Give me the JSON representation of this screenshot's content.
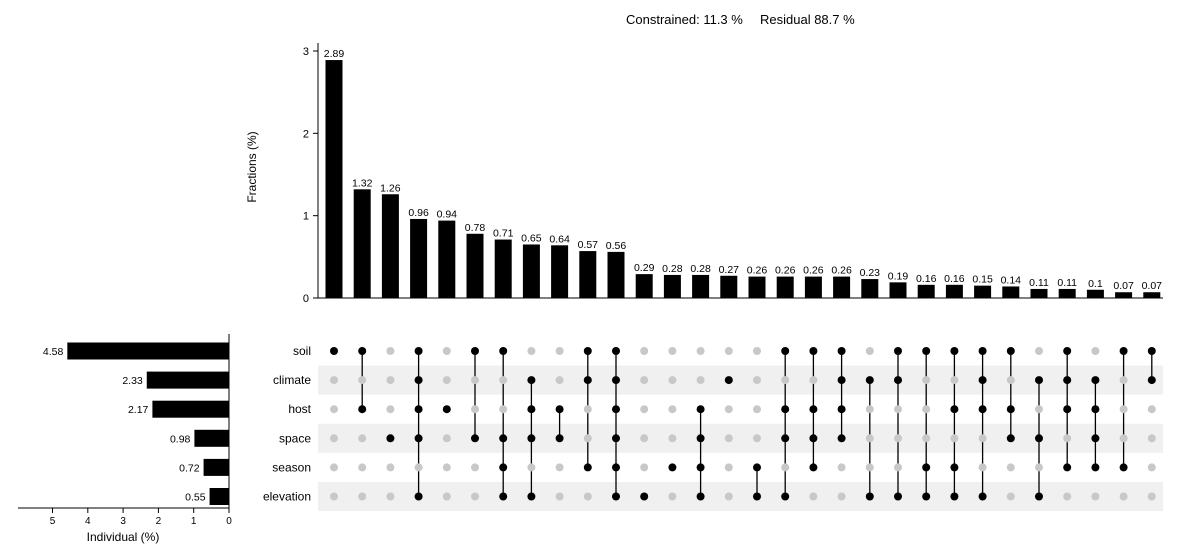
{
  "header": {
    "constrained": "Constrained: 11.3 %",
    "residual": "Residual 88.7 %"
  },
  "chart_data": {
    "type": "bar",
    "title": "",
    "ylabel": "Fractions (%)",
    "ylim": [
      0,
      3.2
    ],
    "yticks": [
      0,
      1,
      2,
      3
    ],
    "values": [
      2.89,
      1.32,
      1.26,
      0.96,
      0.94,
      0.78,
      0.71,
      0.65,
      0.64,
      0.57,
      0.56,
      0.29,
      0.28,
      0.28,
      0.27,
      0.26,
      0.26,
      0.26,
      0.26,
      0.23,
      0.19,
      0.16,
      0.16,
      0.15,
      0.14,
      0.11,
      0.11,
      0.1,
      0.07,
      0.07
    ],
    "value_labels": [
      "2.89",
      "1.32",
      "1.26",
      "0.96",
      "0.94",
      "0.78",
      "0.71",
      "0.65",
      "0.64",
      "0.57",
      "0.56",
      "0.29",
      "0.28",
      "0.28",
      "0.27",
      "0.26",
      "0.26",
      "0.26",
      "0.26",
      "0.23",
      "0.19",
      "0.16",
      "0.16",
      "0.15",
      "0.14",
      "0.11",
      "0.11",
      "0.1",
      "0.07",
      "0.07"
    ],
    "sets": [
      "soil",
      "climate",
      "host",
      "space",
      "season",
      "elevation"
    ],
    "set_sizes": [
      4.58,
      2.33,
      2.17,
      0.98,
      0.72,
      0.55
    ],
    "set_size_labels": [
      "4.58",
      "2.33",
      "2.17",
      "0.98",
      "0.72",
      "0.55"
    ],
    "set_size_xlabel": "Individual (%)",
    "set_size_xlim": [
      0,
      5.8
    ],
    "set_size_xticks": [
      5,
      4,
      3,
      2,
      1,
      0
    ],
    "intersections": [
      [
        "soil"
      ],
      [
        "soil",
        "host"
      ],
      [
        "space"
      ],
      [
        "soil",
        "climate",
        "host",
        "space",
        "elevation"
      ],
      [
        "host"
      ],
      [
        "soil",
        "space"
      ],
      [
        "soil",
        "space",
        "season",
        "elevation"
      ],
      [
        "climate",
        "host",
        "space",
        "elevation"
      ],
      [
        "host",
        "space"
      ],
      [
        "soil",
        "climate",
        "season"
      ],
      [
        "soil",
        "climate",
        "host",
        "space",
        "season",
        "elevation"
      ],
      [
        "elevation"
      ],
      [
        "season"
      ],
      [
        "host",
        "space",
        "season",
        "elevation"
      ],
      [
        "climate"
      ],
      [
        "season",
        "elevation"
      ],
      [
        "soil",
        "host",
        "space",
        "elevation"
      ],
      [
        "soil",
        "host",
        "space",
        "season"
      ],
      [
        "soil",
        "climate",
        "host",
        "space"
      ],
      [
        "climate",
        "elevation"
      ],
      [
        "soil",
        "climate",
        "elevation"
      ],
      [
        "soil",
        "season",
        "elevation"
      ],
      [
        "soil",
        "host",
        "season",
        "elevation"
      ],
      [
        "soil",
        "climate",
        "host",
        "elevation"
      ],
      [
        "soil",
        "host",
        "space"
      ],
      [
        "climate",
        "space",
        "elevation"
      ],
      [
        "soil",
        "climate",
        "host",
        "season"
      ],
      [
        "climate",
        "host",
        "space",
        "season"
      ],
      [
        "soil",
        "season"
      ],
      [
        "soil",
        "climate"
      ]
    ]
  }
}
